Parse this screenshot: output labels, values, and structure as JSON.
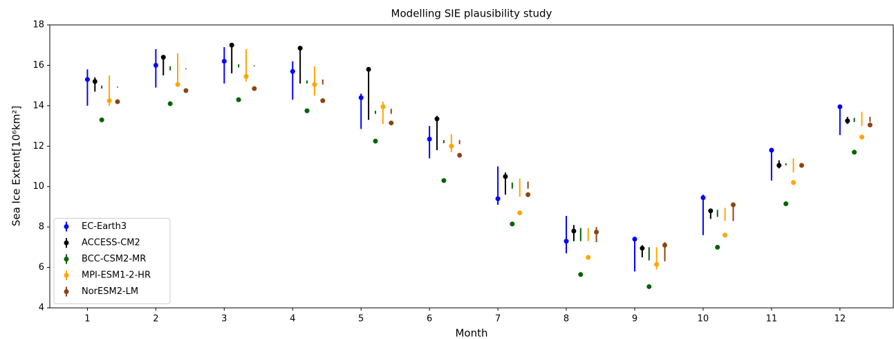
{
  "chart_data": {
    "type": "errorbar",
    "title": "Modelling SIE plausibility study",
    "x_label": "Month",
    "y_label": "Sea Ice Extent[10⁶km²]",
    "x": [
      1,
      2,
      3,
      4,
      5,
      6,
      7,
      8,
      9,
      10,
      11,
      12
    ],
    "xlim": [
      0.45,
      12.78
    ],
    "xticks": [
      1,
      2,
      3,
      4,
      5,
      6,
      7,
      8,
      9,
      10,
      11,
      12
    ],
    "ylim": [
      4,
      18
    ],
    "yticks": [
      4,
      6,
      8,
      10,
      12,
      14,
      16,
      18
    ],
    "legend": "lower left",
    "series": [
      {
        "name": "EC-Earth3",
        "color": "#0000ff",
        "values": [
          15.3,
          16.0,
          16.2,
          15.7,
          14.4,
          12.35,
          9.4,
          7.3,
          7.4,
          9.45,
          11.8,
          13.95
        ],
        "low": [
          14.0,
          14.9,
          15.1,
          14.3,
          12.85,
          11.4,
          9.1,
          6.7,
          5.8,
          7.6,
          10.3,
          12.55
        ],
        "high": [
          15.8,
          16.8,
          16.9,
          16.2,
          14.6,
          13.0,
          11.0,
          8.55,
          7.5,
          9.6,
          11.9,
          14.05
        ]
      },
      {
        "name": "ACCESS-CM2",
        "color": "#000000",
        "values": [
          15.2,
          16.4,
          17.0,
          16.85,
          15.8,
          13.35,
          10.5,
          7.8,
          6.95,
          8.8,
          11.05,
          13.25
        ],
        "low": [
          14.7,
          15.5,
          15.6,
          15.1,
          13.3,
          11.8,
          9.6,
          7.3,
          6.5,
          8.4,
          10.9,
          13.1
        ],
        "high": [
          15.4,
          16.5,
          17.1,
          16.9,
          15.9,
          13.5,
          10.7,
          8.1,
          7.1,
          8.9,
          11.3,
          13.45
        ]
      },
      {
        "name": "BCC-CSM2-MR",
        "color": "#006400",
        "values": [
          13.3,
          14.1,
          14.3,
          13.75,
          12.25,
          10.3,
          8.15,
          5.65,
          5.05,
          7.0,
          9.15,
          11.7
        ],
        "low": [
          14.85,
          15.75,
          15.9,
          15.1,
          13.6,
          12.15,
          9.9,
          7.3,
          6.35,
          8.5,
          11.05,
          13.2
        ],
        "high": [
          15.0,
          15.95,
          16.05,
          15.25,
          13.75,
          12.3,
          10.2,
          7.95,
          7.0,
          8.85,
          11.15,
          13.4
        ]
      },
      {
        "name": "MPI-ESM1-2-HR",
        "color": "#ffa500",
        "values": [
          14.25,
          15.05,
          15.45,
          15.05,
          13.95,
          12.0,
          8.7,
          6.5,
          6.15,
          7.6,
          10.2,
          12.45
        ],
        "low": [
          14.0,
          15.0,
          15.2,
          14.5,
          13.1,
          11.7,
          9.5,
          7.3,
          5.9,
          8.3,
          10.7,
          13.0
        ],
        "high": [
          15.5,
          16.6,
          16.8,
          15.95,
          14.2,
          12.6,
          10.4,
          7.95,
          7.0,
          8.95,
          11.4,
          13.7
        ]
      },
      {
        "name": "NorESM2-LM",
        "color": "#8b4513",
        "values": [
          14.2,
          14.75,
          14.85,
          14.25,
          13.15,
          11.55,
          9.6,
          7.75,
          7.1,
          9.1,
          11.05,
          13.05
        ],
        "low": [
          14.9,
          15.8,
          15.95,
          15.05,
          13.6,
          12.1,
          9.9,
          7.25,
          6.3,
          8.3,
          11.0,
          13.2
        ],
        "high": [
          14.95,
          15.85,
          16.0,
          15.3,
          13.85,
          12.3,
          10.25,
          8.0,
          7.25,
          9.2,
          11.1,
          13.45
        ]
      }
    ]
  }
}
